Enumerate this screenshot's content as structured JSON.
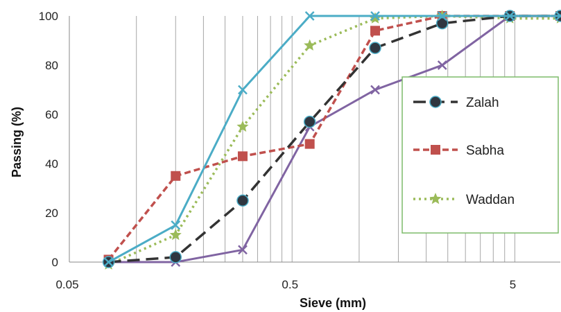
{
  "chart_data": {
    "type": "line",
    "title": "",
    "xlabel": "Sieve (mm)",
    "ylabel": "Passing (%)",
    "x_scale": "log",
    "xlim": [
      0.05,
      8
    ],
    "ylim": [
      0,
      100
    ],
    "x_ticks": [
      0.05,
      0.5,
      5
    ],
    "x_tick_labels": [
      "0.05",
      "0.5",
      "5"
    ],
    "y_ticks": [
      0,
      20,
      40,
      60,
      80,
      100
    ],
    "y_tick_labels": [
      "0",
      "20",
      "40",
      "60",
      "80",
      "100"
    ],
    "grid": {
      "vertical_minor": true,
      "horizontal": false
    },
    "legend_position": "right",
    "series": [
      {
        "name": "Zalah",
        "color": "#333333",
        "marker": "circle",
        "dash": "dash",
        "x": [
          0.075,
          0.15,
          0.3,
          0.6,
          1.18,
          2.36,
          4.75,
          8
        ],
        "y": [
          0,
          2,
          25,
          57,
          87,
          97,
          100,
          100
        ]
      },
      {
        "name": "Sabha",
        "color": "#c0504d",
        "marker": "square",
        "dash": "dashed-short",
        "x": [
          0.075,
          0.15,
          0.3,
          0.6,
          1.18,
          2.36,
          4.75,
          8
        ],
        "y": [
          1,
          35,
          43,
          48,
          94,
          100,
          100,
          100
        ]
      },
      {
        "name": "Waddan",
        "color": "#9bbb59",
        "marker": "star",
        "dash": "dot",
        "x": [
          0.075,
          0.15,
          0.3,
          0.6,
          1.18,
          2.36,
          4.75,
          8
        ],
        "y": [
          -1,
          11,
          55,
          88,
          99,
          100,
          99,
          99
        ]
      },
      {
        "color": "#4bacc6",
        "marker": "x",
        "dash": "solid",
        "x": [
          0.075,
          0.15,
          0.3,
          0.6,
          1.18,
          2.36,
          4.75,
          8
        ],
        "y": [
          0,
          15,
          70,
          100,
          100,
          100,
          100,
          100
        ]
      },
      {
        "color": "#8064a2",
        "marker": "x",
        "dash": "solid",
        "x": [
          0.075,
          0.15,
          0.3,
          0.6,
          1.18,
          2.36,
          4.75,
          8
        ],
        "y": [
          0,
          0,
          5,
          55,
          70,
          80,
          100,
          100
        ]
      }
    ],
    "legend_entries": [
      "Zalah",
      "Sabha",
      "Waddan"
    ],
    "legend_border_color": "#7dbb6a"
  }
}
